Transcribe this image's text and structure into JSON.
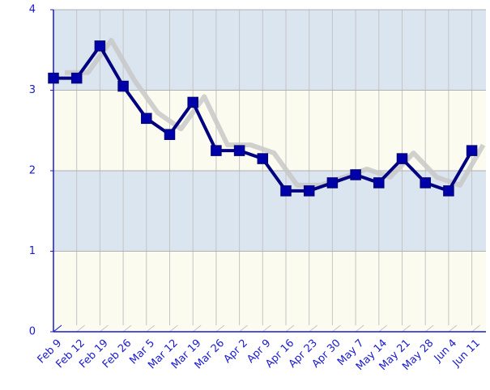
{
  "chart_data": {
    "type": "line",
    "categories": [
      "Feb 9",
      "Feb 12",
      "Feb 19",
      "Feb 26",
      "Mar 5",
      "Mar 12",
      "Mar 19",
      "Mar 26",
      "Apr 2",
      "Apr 9",
      "Apr 16",
      "Apr 23",
      "Apr 30",
      "May 7",
      "May 14",
      "May 21",
      "May 28",
      "Jun 4",
      "Jun 11"
    ],
    "values": [
      3.15,
      3.15,
      3.55,
      3.05,
      2.65,
      2.45,
      2.85,
      2.25,
      2.25,
      2.15,
      1.75,
      1.75,
      1.85,
      1.95,
      1.85,
      2.15,
      1.85,
      1.75,
      2.25
    ],
    "color": "#000080",
    "ylim": [
      0,
      4
    ],
    "yticks": [
      0,
      1,
      2,
      3,
      4
    ],
    "grid": true
  }
}
